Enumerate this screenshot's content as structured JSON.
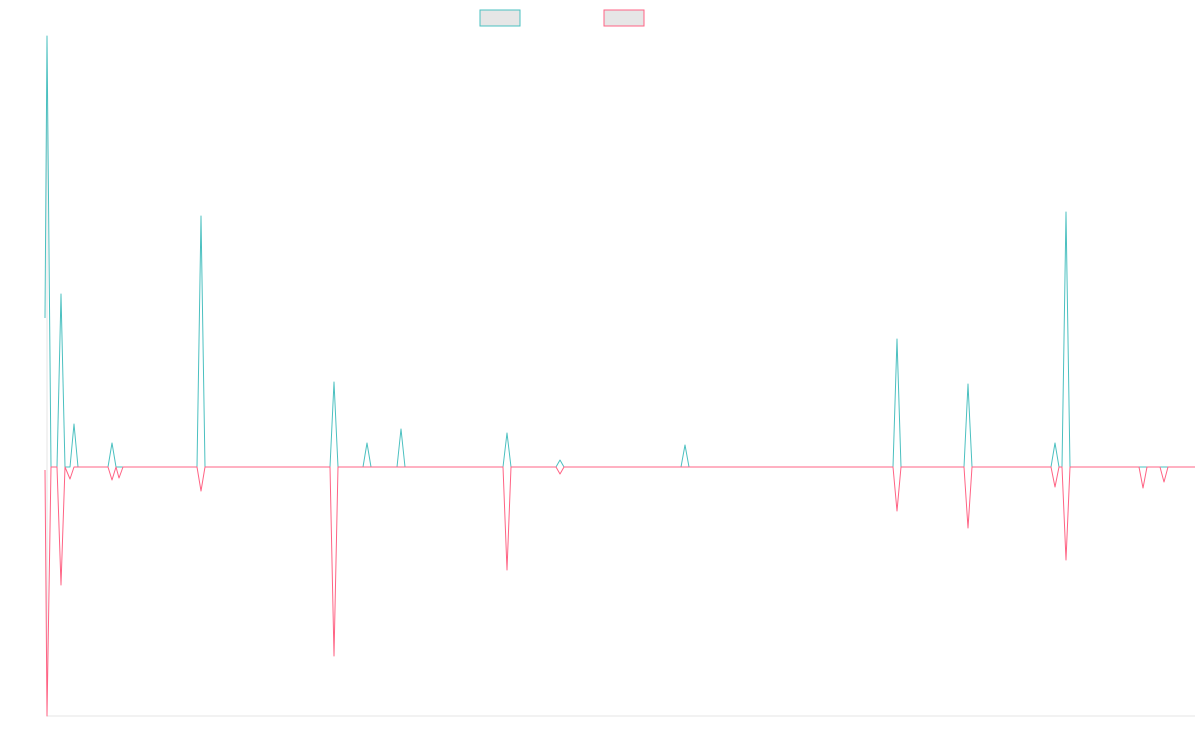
{
  "chart_data": {
    "type": "line",
    "x": [
      -2,
      0,
      4,
      10,
      14,
      18,
      23,
      27,
      31,
      61,
      65,
      69,
      72,
      76,
      150,
      154,
      158,
      283,
      287,
      291,
      316,
      320,
      324,
      350,
      354,
      358,
      456,
      460,
      464,
      509,
      513,
      517,
      634,
      638,
      642,
      846,
      850,
      854,
      917,
      921,
      925,
      1004,
      1008,
      1012,
      1015,
      1019,
      1023,
      1092,
      1096,
      1100,
      1113,
      1117,
      1121,
      1148
    ],
    "series": [
      {
        "color": "#4bc0c0",
        "values": [
          149,
          431,
          0,
          0,
          173,
          0,
          0,
          43,
          0,
          0,
          24,
          0,
          0,
          0,
          0,
          251,
          0,
          0,
          85,
          0,
          0,
          24,
          0,
          0,
          38,
          0,
          0,
          34,
          0,
          0,
          7,
          0,
          0,
          22,
          0,
          0,
          128,
          0,
          0,
          83,
          0,
          0,
          24,
          0,
          0,
          255,
          0,
          0,
          0,
          0,
          0,
          0,
          0,
          0
        ]
      },
      {
        "color": "#ff6384",
        "values": [
          -3,
          -249,
          0,
          0,
          -118,
          0,
          -12,
          0,
          0,
          0,
          -13,
          0,
          -11,
          0,
          0,
          -24,
          0,
          0,
          -189,
          0,
          0,
          0,
          0,
          0,
          0,
          0,
          0,
          -103,
          0,
          0,
          -7,
          0,
          0,
          0,
          0,
          0,
          -44,
          0,
          0,
          -61,
          0,
          0,
          -20,
          0,
          0,
          -93,
          0,
          0,
          -21,
          0,
          0,
          -15,
          0,
          0
        ]
      }
    ],
    "xlim": [
      -2,
      1148
    ],
    "ylim": [
      -249,
      431
    ]
  }
}
